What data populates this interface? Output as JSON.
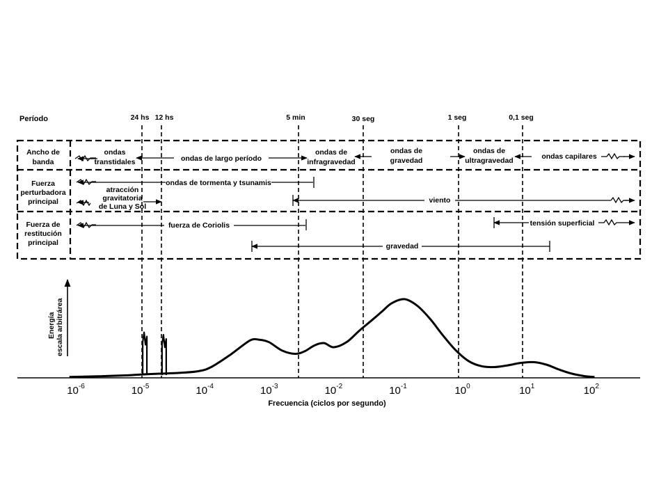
{
  "period_title": "Período",
  "periods": [
    {
      "label": "24 hs"
    },
    {
      "label": "12 hs"
    },
    {
      "label": "5 min"
    },
    {
      "label": "30 seg"
    },
    {
      "label": "1 seg"
    },
    {
      "label": "0,1 seg"
    }
  ],
  "rows": {
    "bandwidth": {
      "title_lines": [
        "Ancho de",
        "banda"
      ],
      "bands": [
        {
          "lines": [
            "ondas",
            "transtidales"
          ]
        },
        {
          "lines": [
            "ondas de largo período"
          ]
        },
        {
          "lines": [
            "ondas de",
            "infragravedad"
          ]
        },
        {
          "lines": [
            "ondas de",
            "gravedad"
          ]
        },
        {
          "lines": [
            "ondas de",
            "ultragravedad"
          ]
        },
        {
          "lines": [
            "ondas capilares"
          ]
        }
      ]
    },
    "disturbing": {
      "title_lines": [
        "Fuerza",
        "perturbadora",
        "principal"
      ],
      "items": [
        {
          "lines": [
            "ondas de tormenta y tsunamis"
          ]
        },
        {
          "lines": [
            "atracción",
            "gravitatoria",
            "de Luna y Sol"
          ]
        },
        {
          "lines": [
            "viento"
          ]
        }
      ]
    },
    "restoring": {
      "title_lines": [
        "Fuerza de",
        "restitución",
        "principal"
      ],
      "items": [
        {
          "lines": [
            "fuerza de Coriolis"
          ]
        },
        {
          "lines": [
            "tensión superficial"
          ]
        },
        {
          "lines": [
            "gravedad"
          ]
        }
      ]
    }
  },
  "chart_data": {
    "type": "line",
    "xlabel": "Frecuencia (ciclos por segundo)",
    "ylabel_lines": [
      "Energía",
      "escala arbitrárea"
    ],
    "x_scale": "log",
    "x_ticks": [
      {
        "base": "10",
        "exp": "-6"
      },
      {
        "base": "10",
        "exp": "-5"
      },
      {
        "base": "10",
        "exp": "-4"
      },
      {
        "base": "10",
        "exp": "-3"
      },
      {
        "base": "10",
        "exp": "-2"
      },
      {
        "base": "10",
        "exp": "-1"
      },
      {
        "base": "10",
        "exp": "0"
      },
      {
        "base": "10",
        "exp": "1"
      },
      {
        "base": "10",
        "exp": "2"
      }
    ],
    "xlim": [
      -6,
      2
    ],
    "ylim": [
      0,
      1
    ],
    "series": [
      {
        "x_log10": [
          -6.1,
          -5.6,
          -5.2,
          -5.0,
          -4.7,
          -4.4,
          -4.1,
          -3.9,
          -3.6,
          -3.3,
          -3.15,
          -3.0,
          -2.8,
          -2.6,
          -2.45,
          -2.3,
          -2.15,
          -2.0,
          -1.8,
          -1.6,
          -1.4,
          -1.25,
          -1.1,
          -0.9,
          -0.7,
          -0.5,
          -0.3,
          -0.1,
          0.1,
          0.3,
          0.5,
          0.7,
          0.9,
          1.1,
          1.3,
          1.5,
          1.7,
          1.9,
          2.05
        ],
        "y": [
          0.01,
          0.02,
          0.03,
          0.04,
          0.05,
          0.06,
          0.08,
          0.13,
          0.28,
          0.45,
          0.46,
          0.43,
          0.33,
          0.29,
          0.32,
          0.39,
          0.42,
          0.37,
          0.43,
          0.57,
          0.7,
          0.8,
          0.9,
          0.95,
          0.87,
          0.71,
          0.51,
          0.33,
          0.2,
          0.14,
          0.13,
          0.15,
          0.18,
          0.19,
          0.16,
          0.1,
          0.05,
          0.02,
          0.01
        ]
      }
    ],
    "tidal_spikes": [
      {
        "label": "24 hs",
        "x_log10": -4.93,
        "y": 0.55
      },
      {
        "label": "12 hs",
        "x_log10": -4.63,
        "y": 0.52
      }
    ]
  }
}
